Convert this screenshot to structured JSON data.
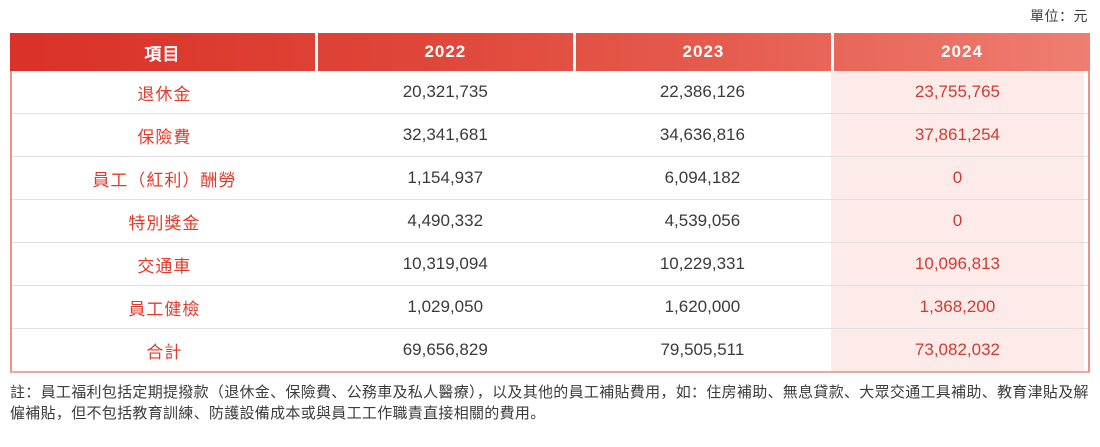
{
  "unit_label": "單位：元",
  "table": {
    "headers": [
      "項目",
      "2022",
      "2023",
      "2024"
    ],
    "rows": [
      {
        "label": "退休金",
        "values": [
          "20,321,735",
          "22,386,126",
          "23,755,765"
        ]
      },
      {
        "label": "保險費",
        "values": [
          "32,341,681",
          "34,636,816",
          "37,861,254"
        ]
      },
      {
        "label": "員工（紅利）酬勞",
        "values": [
          "1,154,937",
          "6,094,182",
          "0"
        ]
      },
      {
        "label": "特別獎金",
        "values": [
          "4,490,332",
          "4,539,056",
          "0"
        ]
      },
      {
        "label": "交通車",
        "values": [
          "10,319,094",
          "10,229,331",
          "10,096,813"
        ]
      },
      {
        "label": "員工健檢",
        "values": [
          "1,029,050",
          "1,620,000",
          "1,368,200"
        ]
      },
      {
        "label": "合計",
        "values": [
          "69,656,829",
          "79,505,511",
          "73,082,032"
        ]
      }
    ]
  },
  "note": "註：員工福利包括定期提撥款（退休金、保險費、公務車及私人醫療），以及其他的員工補貼費用，如：住房補助、無息貸款、大眾交通工具補助、教育津貼及解僱補貼，但不包括教育訓練、防護設備成本或與員工工作職責直接相關的費用。",
  "colors": {
    "header_gradient_start": "#da3128",
    "header_gradient_end": "#ee7e71",
    "item_text": "#e23b2c",
    "col_2024_bg": "#fcebe9",
    "col_2024_text": "#d33a31",
    "row_divider": "#e0e0e0",
    "table_border": "#f2a79e"
  }
}
